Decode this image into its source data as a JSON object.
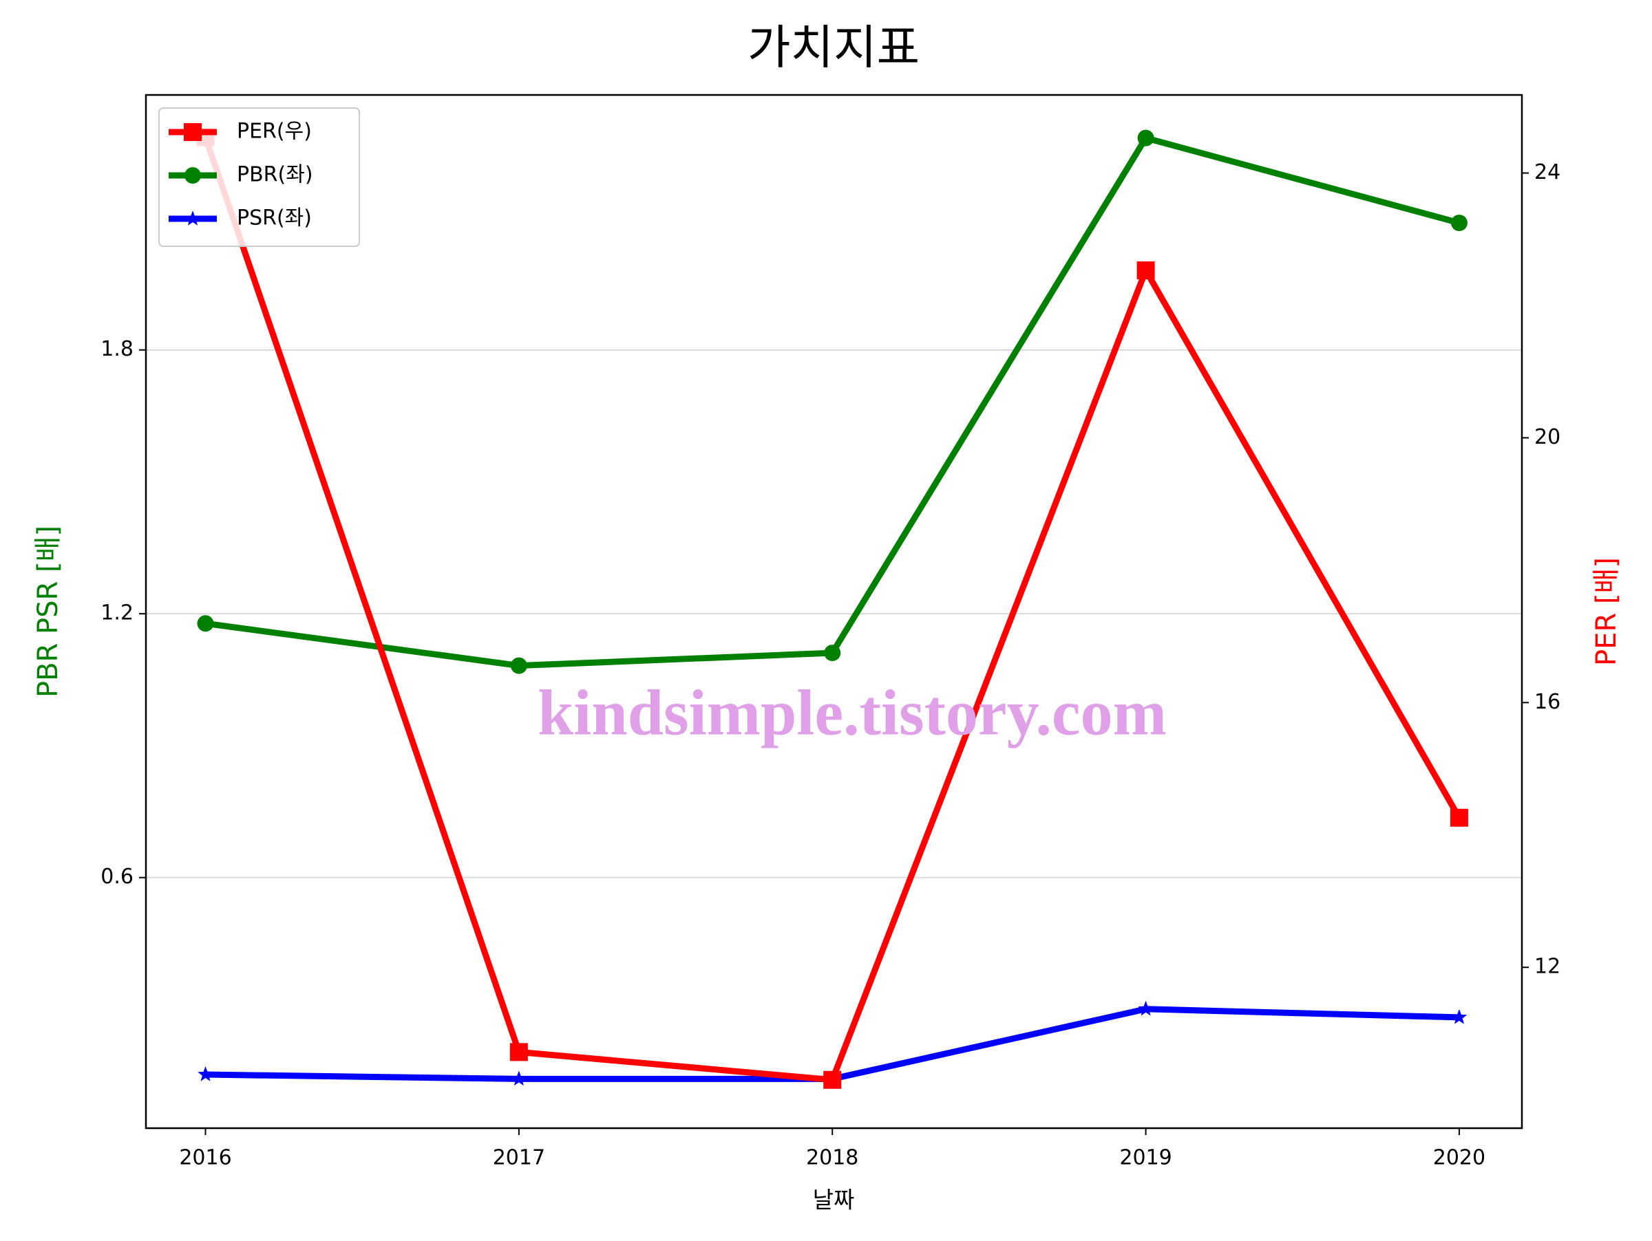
{
  "chart_data": {
    "type": "line",
    "title": "가치지표",
    "x_label": "날짜",
    "y_label": "PBR PSR [배]",
    "y2_label": "PER [배]",
    "x": [
      2016,
      2017,
      2018,
      2019,
      2020
    ],
    "series": [
      {
        "name": "PER(우)",
        "color": "#ff0000",
        "marker": "square",
        "axis": "y2",
        "values": [
          24.54,
          10.72,
          10.3,
          22.53,
          14.26
        ]
      },
      {
        "name": "PBR(좌)",
        "color": "#008000",
        "marker": "circle",
        "values": [
          1.178,
          1.082,
          1.111,
          2.282,
          2.089
        ]
      },
      {
        "name": "PSR(좌)",
        "color": "#0000ff",
        "marker": "star",
        "values": [
          0.152,
          0.142,
          0.142,
          0.301,
          0.282
        ]
      }
    ],
    "xlim": [
      2015.81,
      2020.2
    ],
    "xticks": [
      2016,
      2017,
      2018,
      2019,
      2020
    ],
    "ylim": [
      0.03,
      2.38
    ],
    "yticks": [
      0.6,
      1.2,
      1.8
    ],
    "y2lim": [
      9.57,
      25.18
    ],
    "y2ticks": [
      12,
      16,
      20,
      24
    ],
    "grid": true,
    "legend": "upper left",
    "annotations": [
      "kindsimple.tistory.com"
    ]
  }
}
